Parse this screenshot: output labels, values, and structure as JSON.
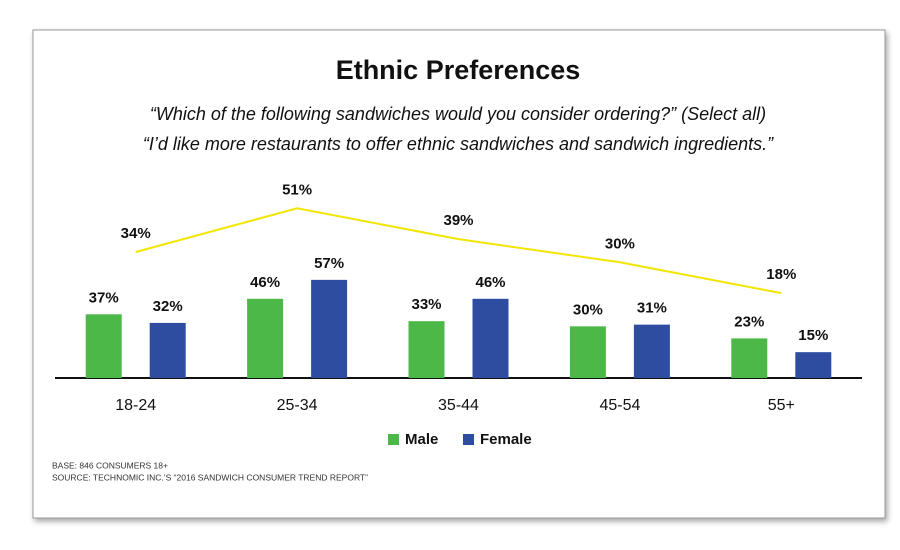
{
  "chart_data": {
    "type": "bar",
    "title": "Ethnic Preferences",
    "subtitle": [
      "“Which of the following sandwiches would you consider ordering?” (Select all)",
      "“I’d like more restaurants to offer ethnic sandwiches and sandwich ingredients.”"
    ],
    "categories": [
      "18-24",
      "25-34",
      "35-44",
      "45-54",
      "55+"
    ],
    "series": [
      {
        "name": "Male",
        "color": "#4cb848",
        "values": [
          37,
          46,
          33,
          30,
          23
        ],
        "value_labels": [
          "37%",
          "46%",
          "33%",
          "30%",
          "23%"
        ]
      },
      {
        "name": "Female",
        "color": "#2f4da0",
        "values": [
          32,
          57,
          46,
          31,
          15
        ],
        "value_labels": [
          "32%",
          "57%",
          "46%",
          "31%",
          "15%"
        ]
      },
      {
        "type": "line",
        "axis": "y2",
        "color": "#f2e600",
        "values": [
          34,
          51,
          39,
          30,
          18
        ],
        "value_labels": [
          "34%",
          "51%",
          "39%",
          "30%",
          "18%"
        ]
      }
    ],
    "ylim": [
      0,
      115
    ],
    "y2lim": [
      -15,
      62
    ],
    "legend": "bottom",
    "notes": [
      "BASE: 846 CONSUMERS 18+",
      "SOURCE: TECHNOMIC INC.’S “2016 SANDWICH CONSUMER TREND REPORT”"
    ]
  }
}
